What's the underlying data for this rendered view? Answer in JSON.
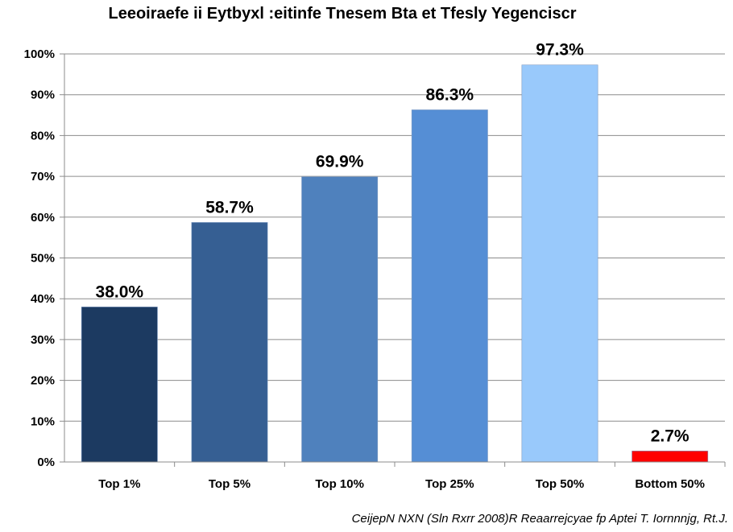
{
  "chart_data": {
    "type": "bar",
    "title": "Leeoiraefe ii Eytbyxl :eitinfe Tnesem Bta et Tfesly Yegenciscr",
    "categories": [
      "Top 1%",
      "Top 5%",
      "Top 10%",
      "Top 25%",
      "Top 50%",
      "Bottom 50%"
    ],
    "values": [
      38.0,
      58.7,
      69.9,
      86.3,
      97.3,
      2.7
    ],
    "value_labels": [
      "38.0%",
      "58.7%",
      "69.9%",
      "86.3%",
      "97.3%",
      "2.7%"
    ],
    "bar_colors": [
      "#1c3a61",
      "#365f93",
      "#4f81bd",
      "#558ed5",
      "#99c9fb",
      "#ff0000"
    ],
    "ylim": [
      0,
      100
    ],
    "yticks": [
      0,
      10,
      20,
      30,
      40,
      50,
      60,
      70,
      80,
      90,
      100
    ],
    "ytick_labels": [
      "0%",
      "10%",
      "20%",
      "30%",
      "40%",
      "50%",
      "60%",
      "70%",
      "80%",
      "90%",
      "100%"
    ],
    "xlabel": "",
    "ylabel": "",
    "grid": true,
    "legend": "none",
    "source": "CeijepN NXN (Sln Rxrr 2008)R Reaarrejcyae fp Aptei T. Iornnnjg, Rt.J."
  }
}
